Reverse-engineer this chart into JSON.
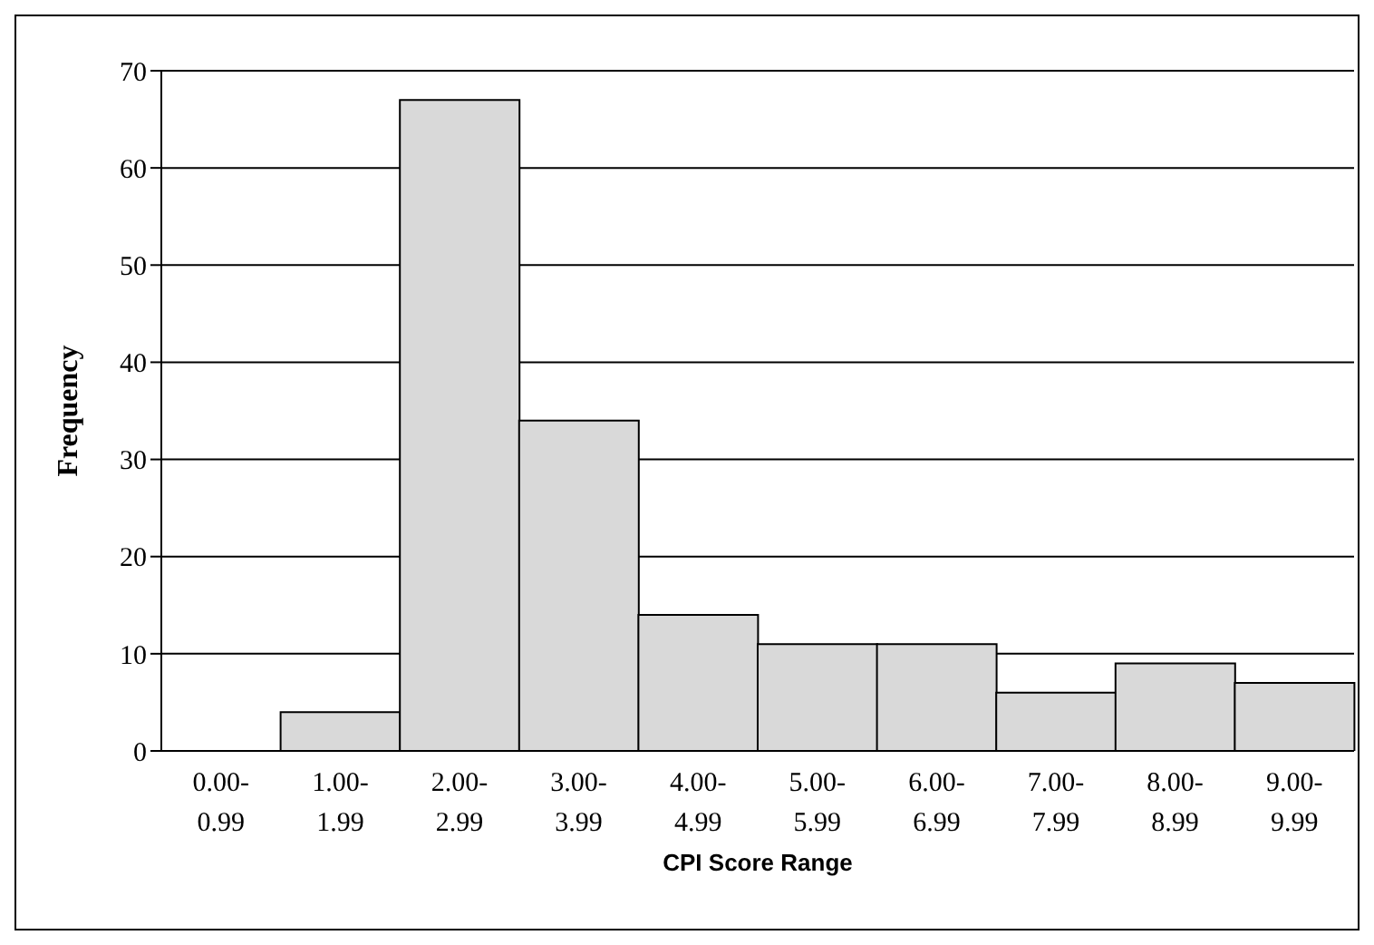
{
  "chart_data": {
    "type": "bar",
    "xlabel": "CPI Score Range",
    "ylabel": "Frequency",
    "categories": [
      "0.00-0.99",
      "1.00-1.99",
      "2.00-2.99",
      "3.00-3.99",
      "4.00-4.99",
      "5.00-5.99",
      "6.00-6.99",
      "7.00-7.99",
      "8.00-8.99",
      "9.00-9.99"
    ],
    "values": [
      0,
      4,
      67,
      34,
      14,
      11,
      11,
      6,
      9,
      7
    ],
    "color": "#d9d9d9",
    "ylim": [
      0,
      70
    ],
    "yticks": [
      0,
      10,
      20,
      30,
      40,
      50,
      60,
      70
    ],
    "grid": "y"
  }
}
